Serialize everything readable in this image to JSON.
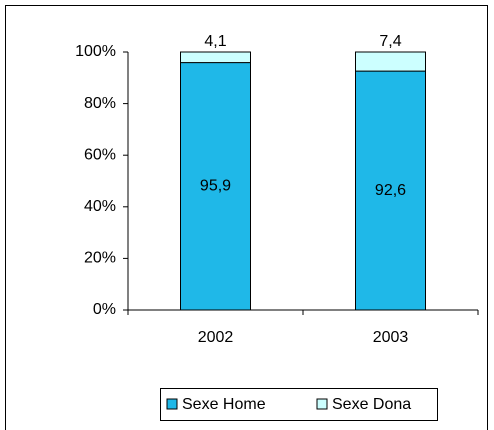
{
  "chart_data": {
    "type": "stacked_bar",
    "categories": [
      "2002",
      "2003"
    ],
    "series": [
      {
        "name": "Sexe Home",
        "color": "#1fb8e8",
        "values": [
          95.9,
          92.6
        ],
        "value_labels": [
          "95,9",
          "92,6"
        ]
      },
      {
        "name": "Sexe Dona",
        "color": "#ccffff",
        "values": [
          4.1,
          7.4
        ],
        "value_labels": [
          "4,1",
          "7,4"
        ]
      }
    ],
    "ylim": [
      0,
      100
    ],
    "yticks": [
      {
        "value": 0,
        "label": "0%"
      },
      {
        "value": 20,
        "label": "20%"
      },
      {
        "value": 40,
        "label": "40%"
      },
      {
        "value": 60,
        "label": "60%"
      },
      {
        "value": 80,
        "label": "80%"
      },
      {
        "value": 100,
        "label": "100%"
      }
    ],
    "legend": "bottom"
  }
}
